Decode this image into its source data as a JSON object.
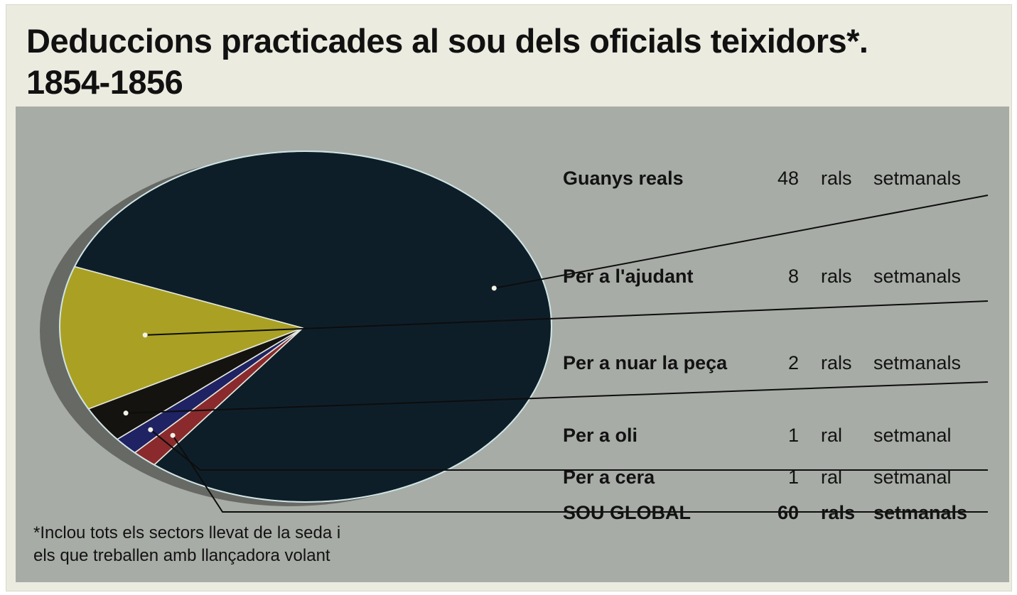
{
  "chart_data": {
    "type": "pie",
    "title": "Deduccions practicades al sou dels oficials teixidors*.",
    "subtitle": "1854-1856",
    "slices": [
      {
        "label": "Guanys reals",
        "value": 48,
        "unit_word": "rals",
        "period_word": "setmanals",
        "color": "#0e1e29"
      },
      {
        "label": "Per a l'ajudant",
        "value": 8,
        "unit_word": "rals",
        "period_word": "setmanals",
        "color": "#aaa124"
      },
      {
        "label": "Per a nuar la peça",
        "value": 2,
        "unit_word": "rals",
        "period_word": "setmanals",
        "color": "#15130f"
      },
      {
        "label": "Per a oli",
        "value": 1,
        "unit_word": "ral",
        "period_word": "setmanal",
        "color": "#1f2263"
      },
      {
        "label": "Per a cera",
        "value": 1,
        "unit_word": "ral",
        "period_word": "setmanal",
        "color": "#8a2a2c"
      }
    ],
    "total": {
      "label": "SOU GLOBAL",
      "value": 60,
      "unit_word": "rals",
      "period_word": "setmanals"
    },
    "footnote": [
      "*Inclou tots els sectors llevat de la seda i",
      "els que treballen amb llançadora volant"
    ]
  }
}
